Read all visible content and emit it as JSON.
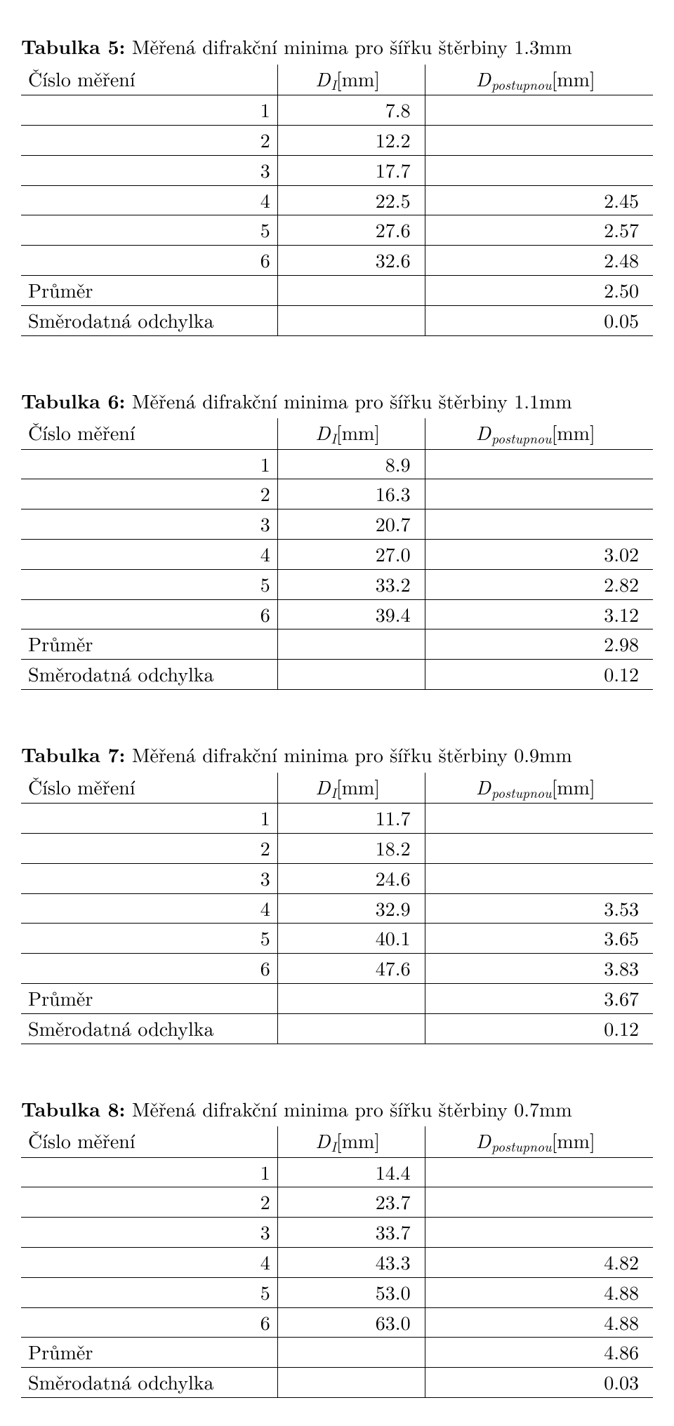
{
  "headers": {
    "col1": "Číslo měření",
    "col2_sym": "D",
    "col2_sub": "I",
    "col2_unit": "[mm]",
    "col3_sym": "D",
    "col3_sub": "postupnou",
    "col3_unit": "[mm]"
  },
  "summary_labels": {
    "mean": "Průměr",
    "stdev": "Směrodatná odchylka"
  },
  "tables": [
    {
      "caption_label": "Tabulka 5:",
      "caption_text": "Měřená difrakční minima pro šířku štěrbiny 1.3mm",
      "rows": [
        [
          "1",
          "7.8",
          ""
        ],
        [
          "2",
          "12.2",
          ""
        ],
        [
          "3",
          "17.7",
          ""
        ],
        [
          "4",
          "22.5",
          "2.45"
        ],
        [
          "5",
          "27.6",
          "2.57"
        ],
        [
          "6",
          "32.6",
          "2.48"
        ]
      ],
      "mean": "2.50",
      "stdev": "0.05"
    },
    {
      "caption_label": "Tabulka 6:",
      "caption_text": "Měřená difrakční minima pro šířku štěrbiny 1.1mm",
      "rows": [
        [
          "1",
          "8.9",
          ""
        ],
        [
          "2",
          "16.3",
          ""
        ],
        [
          "3",
          "20.7",
          ""
        ],
        [
          "4",
          "27.0",
          "3.02"
        ],
        [
          "5",
          "33.2",
          "2.82"
        ],
        [
          "6",
          "39.4",
          "3.12"
        ]
      ],
      "mean": "2.98",
      "stdev": "0.12"
    },
    {
      "caption_label": "Tabulka 7:",
      "caption_text": "Měřená difrakční minima pro šířku štěrbiny 0.9mm",
      "rows": [
        [
          "1",
          "11.7",
          ""
        ],
        [
          "2",
          "18.2",
          ""
        ],
        [
          "3",
          "24.6",
          ""
        ],
        [
          "4",
          "32.9",
          "3.53"
        ],
        [
          "5",
          "40.1",
          "3.65"
        ],
        [
          "6",
          "47.6",
          "3.83"
        ]
      ],
      "mean": "3.67",
      "stdev": "0.12"
    },
    {
      "caption_label": "Tabulka 8:",
      "caption_text": "Měřená difrakční minima pro šířku štěrbiny 0.7mm",
      "rows": [
        [
          "1",
          "14.4",
          ""
        ],
        [
          "2",
          "23.7",
          ""
        ],
        [
          "3",
          "33.7",
          ""
        ],
        [
          "4",
          "43.3",
          "4.82"
        ],
        [
          "5",
          "53.0",
          "4.88"
        ],
        [
          "6",
          "63.0",
          "4.88"
        ]
      ],
      "mean": "4.86",
      "stdev": "0.03"
    }
  ]
}
